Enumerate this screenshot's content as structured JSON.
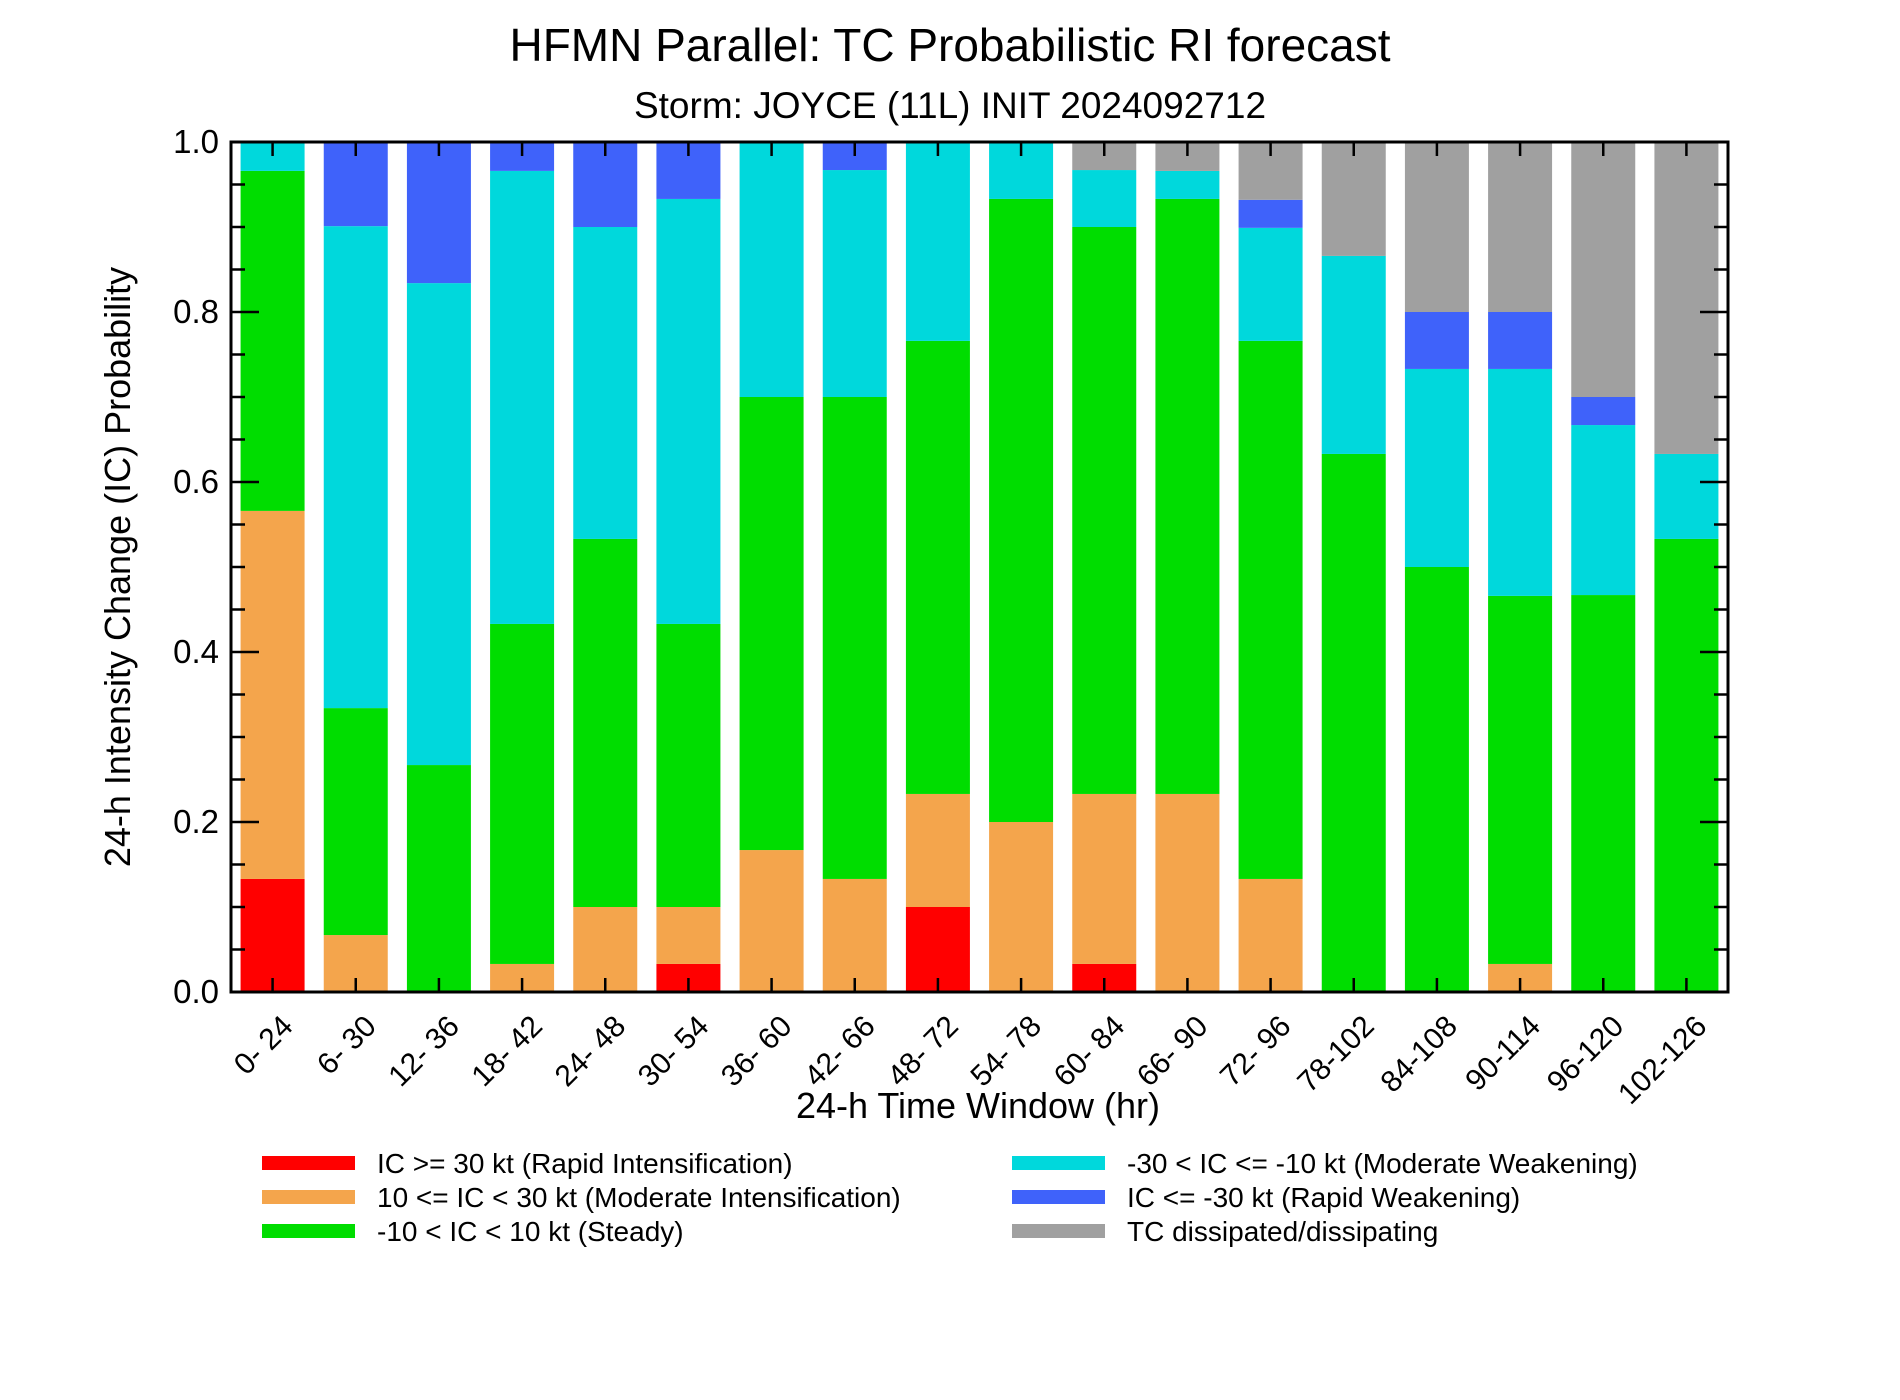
{
  "chart_data": {
    "type": "bar",
    "stacked": true,
    "title": "HFMN Parallel: TC Probabilistic RI forecast",
    "subtitle": "Storm: JOYCE (11L) INIT 2024092712",
    "xlabel": "24-h Time Window (hr)",
    "ylabel": "24-h Intensity Change (IC) Probability",
    "ylim": [
      0,
      1
    ],
    "yticks": [
      "0.0",
      "0.2",
      "0.4",
      "0.6",
      "0.8",
      "1.0"
    ],
    "categories": [
      "0- 24",
      "6- 30",
      "12- 36",
      "18- 42",
      "24- 48",
      "30- 54",
      "36- 60",
      "42- 66",
      "48- 72",
      "54- 78",
      "60- 84",
      "66- 90",
      "72- 96",
      "78-102",
      "84-108",
      "90-114",
      "96-120",
      "102-126"
    ],
    "series": [
      {
        "name": "IC >= 30 kt (Rapid Intensification)",
        "color": "#ff0000",
        "values": [
          0.133,
          0,
          0,
          0,
          0,
          0.033,
          0,
          0,
          0.1,
          0,
          0.033,
          0,
          0,
          0,
          0,
          0,
          0,
          0
        ]
      },
      {
        "name": "10 <= IC < 30 kt (Moderate Intensification)",
        "color": "#f4a54c",
        "values": [
          0.433,
          0.067,
          0,
          0.033,
          0.1,
          0.067,
          0.167,
          0.133,
          0.133,
          0.2,
          0.2,
          0.233,
          0.133,
          0,
          0,
          0.033,
          0,
          0
        ]
      },
      {
        "name": "-10 < IC < 10 kt (Steady)",
        "color": "#00dd00",
        "values": [
          0.4,
          0.267,
          0.267,
          0.4,
          0.433,
          0.333,
          0.533,
          0.567,
          0.533,
          0.733,
          0.667,
          0.7,
          0.633,
          0.633,
          0.5,
          0.433,
          0.467,
          0.533
        ]
      },
      {
        "name": "-30 < IC <= -10 kt (Moderate Weakening)",
        "color": "#00d8dc",
        "values": [
          0.033,
          0.567,
          0.567,
          0.533,
          0.367,
          0.5,
          0.3,
          0.267,
          0.233,
          0.067,
          0.067,
          0.033,
          0.133,
          0.233,
          0.233,
          0.267,
          0.2,
          0.1
        ]
      },
      {
        "name": "IC <= -30 kt (Rapid Weakening)",
        "color": "#3f62fa",
        "values": [
          0,
          0.1,
          0.167,
          0.033,
          0.1,
          0.067,
          0,
          0.033,
          0,
          0,
          0,
          0,
          0.033,
          0,
          0.067,
          0.067,
          0.033,
          0
        ]
      },
      {
        "name": "TC dissipated/dissipating",
        "color": "#a0a0a0",
        "values": [
          0,
          0,
          0,
          0,
          0,
          0,
          0,
          0,
          0,
          0,
          0.033,
          0.033,
          0.067,
          0.133,
          0.2,
          0.2,
          0.3,
          0.367
        ]
      }
    ],
    "legend": "bottom",
    "grid": false
  }
}
